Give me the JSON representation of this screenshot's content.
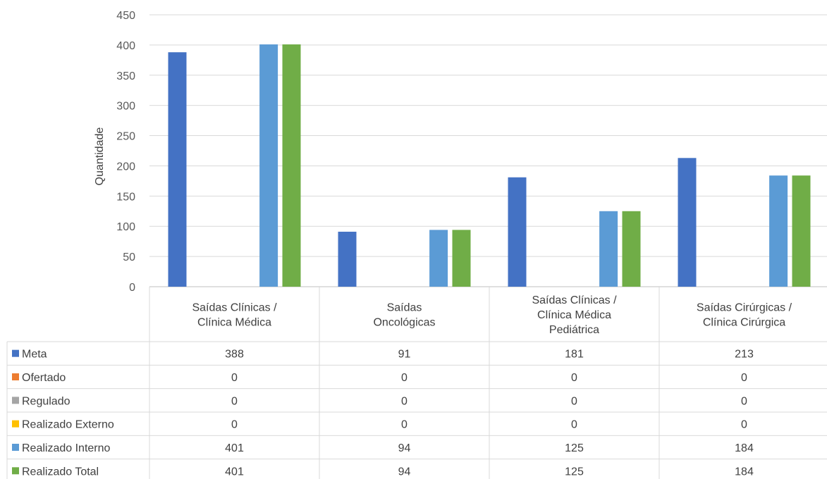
{
  "chart_data": {
    "type": "bar",
    "ylabel": "Quantidade",
    "ylim": [
      0,
      450
    ],
    "yticks": [
      0,
      50,
      100,
      150,
      200,
      250,
      300,
      350,
      400,
      450
    ],
    "grid": true,
    "legend": "data-table",
    "categories": [
      [
        "Saídas Clínicas /",
        "Clínica Médica"
      ],
      [
        "Saídas",
        "Oncológicas"
      ],
      [
        "Saídas Clínicas /",
        "Clínica Médica",
        "Pediátrica"
      ],
      [
        "Saídas Cirúrgicas /",
        "Clínica Cirúrgica"
      ]
    ],
    "series": [
      {
        "name": "Meta",
        "color": "#4472C4",
        "values": [
          388,
          91,
          181,
          213
        ]
      },
      {
        "name": "Ofertado",
        "color": "#ED7D31",
        "values": [
          0,
          0,
          0,
          0
        ]
      },
      {
        "name": "Regulado",
        "color": "#A5A5A5",
        "values": [
          0,
          0,
          0,
          0
        ]
      },
      {
        "name": "Realizado Externo",
        "color": "#FFC000",
        "values": [
          0,
          0,
          0,
          0
        ]
      },
      {
        "name": "Realizado Interno",
        "color": "#5B9BD5",
        "values": [
          401,
          94,
          125,
          184
        ]
      },
      {
        "name": "Realizado Total",
        "color": "#70AD47",
        "values": [
          401,
          94,
          125,
          184
        ]
      }
    ]
  }
}
